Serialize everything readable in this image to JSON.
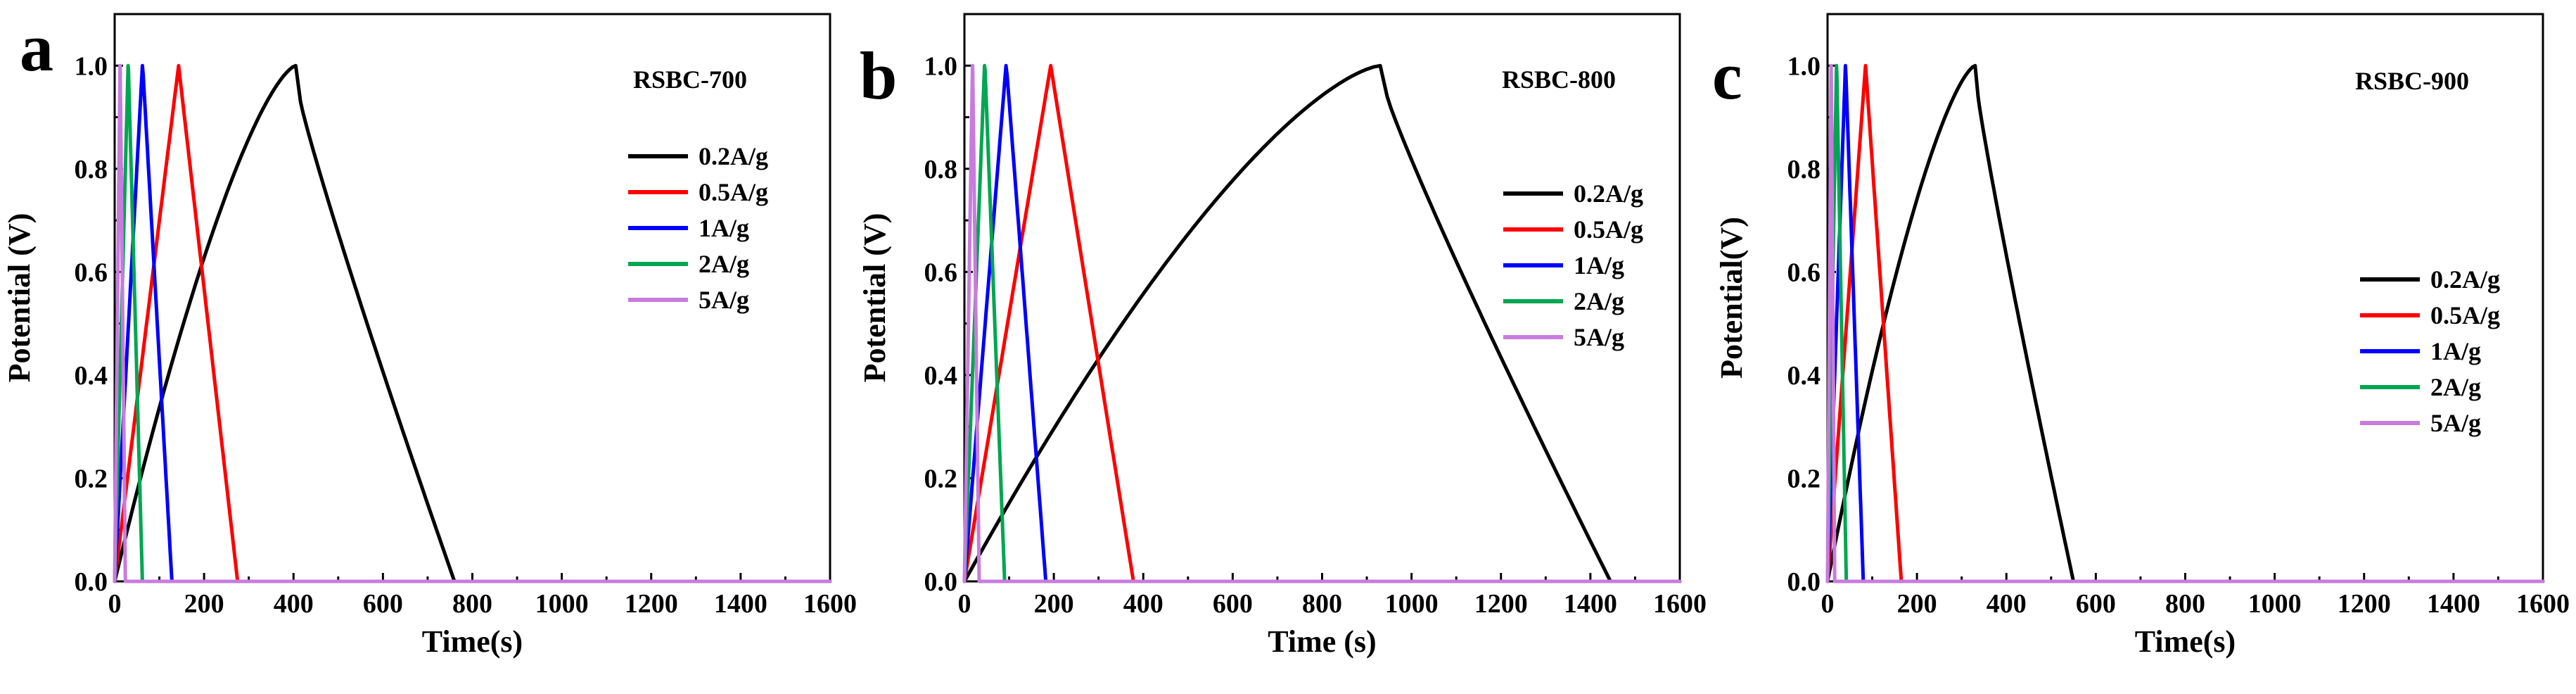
{
  "chart_data": [
    {
      "type": "line",
      "panel_label": "a",
      "sample": "RSBC-700",
      "xlabel": "Time(s)",
      "ylabel": "Potential (V)",
      "xlim": [
        0,
        1600
      ],
      "ylim": [
        0,
        1.1
      ],
      "xticks": [
        0,
        200,
        400,
        600,
        800,
        1000,
        1200,
        1400,
        1600
      ],
      "yticks": [
        0.0,
        0.2,
        0.4,
        0.6,
        0.8,
        1.0
      ],
      "xtick_labels": [
        "0",
        "200",
        "400",
        "600",
        "800",
        "1000",
        "1200",
        "1400",
        "1600"
      ],
      "ytick_labels": [
        "0.0",
        "0.2",
        "0.4",
        "0.6",
        "0.8",
        "1.0"
      ],
      "legend_position": "middle-right",
      "series": [
        {
          "name": "0.2A/g",
          "color": "#000000",
          "peak_time": 405,
          "end_time": 760,
          "charge_shape": "curved",
          "discharge_drop": 0.07
        },
        {
          "name": "0.5A/g",
          "color": "#ff0000",
          "peak_time": 143,
          "end_time": 275,
          "charge_shape": "linear",
          "discharge_drop": 0.03
        },
        {
          "name": "1A/g",
          "color": "#0000ff",
          "peak_time": 62,
          "end_time": 128,
          "charge_shape": "linear",
          "discharge_drop": 0.02
        },
        {
          "name": "2A/g",
          "color": "#00a651",
          "peak_time": 30,
          "end_time": 62,
          "charge_shape": "linear",
          "discharge_drop": 0.01
        },
        {
          "name": "5A/g",
          "color": "#c77cdd",
          "peak_time": 12,
          "end_time": 24,
          "charge_shape": "linear",
          "discharge_drop": 0.0
        }
      ]
    },
    {
      "type": "line",
      "panel_label": "b",
      "sample": "RSBC-800",
      "xlabel": "Time (s)",
      "ylabel": "Potential (V)",
      "xlim": [
        0,
        1600
      ],
      "ylim": [
        0,
        1.1
      ],
      "xticks": [
        0,
        200,
        400,
        600,
        800,
        1000,
        1200,
        1400,
        1600
      ],
      "yticks": [
        0.0,
        0.2,
        0.4,
        0.6,
        0.8,
        1.0
      ],
      "xtick_labels": [
        "0",
        "200",
        "400",
        "600",
        "800",
        "1000",
        "1200",
        "1400",
        "1600"
      ],
      "ytick_labels": [
        "0.0",
        "0.2",
        "0.4",
        "0.6",
        "0.8",
        "1.0"
      ],
      "legend_position": "middle-right",
      "series": [
        {
          "name": "0.2A/g",
          "color": "#000000",
          "peak_time": 930,
          "end_time": 1445,
          "charge_shape": "curved",
          "discharge_drop": 0.06
        },
        {
          "name": "0.5A/g",
          "color": "#ff0000",
          "peak_time": 193,
          "end_time": 378,
          "charge_shape": "linear",
          "discharge_drop": 0.03
        },
        {
          "name": "1A/g",
          "color": "#0000ff",
          "peak_time": 93,
          "end_time": 182,
          "charge_shape": "linear",
          "discharge_drop": 0.02
        },
        {
          "name": "2A/g",
          "color": "#00a651",
          "peak_time": 45,
          "end_time": 90,
          "charge_shape": "linear",
          "discharge_drop": 0.01
        },
        {
          "name": "5A/g",
          "color": "#c77cdd",
          "peak_time": 18,
          "end_time": 33,
          "charge_shape": "linear",
          "discharge_drop": 0.0
        }
      ]
    },
    {
      "type": "line",
      "panel_label": "c",
      "sample": "RSBC-900",
      "xlabel": "Time(s)",
      "ylabel": "Potential(V)",
      "xlim": [
        0,
        1600
      ],
      "ylim": [
        0,
        1.1
      ],
      "xticks": [
        0,
        200,
        400,
        600,
        800,
        1000,
        1200,
        1400,
        1600
      ],
      "yticks": [
        0.0,
        0.2,
        0.4,
        0.6,
        0.8,
        1.0
      ],
      "xtick_labels": [
        "0",
        "200",
        "400",
        "600",
        "800",
        "1000",
        "1200",
        "1400",
        "1600"
      ],
      "ytick_labels": [
        "0.0",
        "0.2",
        "0.4",
        "0.6",
        "0.8",
        "1.0"
      ],
      "legend_position": "right",
      "series": [
        {
          "name": "0.2A/g",
          "color": "#000000",
          "peak_time": 330,
          "end_time": 550,
          "charge_shape": "curved",
          "discharge_drop": 0.06
        },
        {
          "name": "0.5A/g",
          "color": "#ff0000",
          "peak_time": 85,
          "end_time": 165,
          "charge_shape": "linear",
          "discharge_drop": 0.03
        },
        {
          "name": "1A/g",
          "color": "#0000ff",
          "peak_time": 40,
          "end_time": 80,
          "charge_shape": "linear",
          "discharge_drop": 0.02
        },
        {
          "name": "2A/g",
          "color": "#00a651",
          "peak_time": 20,
          "end_time": 42,
          "charge_shape": "linear",
          "discharge_drop": 0.01
        },
        {
          "name": "5A/g",
          "color": "#c77cdd",
          "peak_time": 8,
          "end_time": 16,
          "charge_shape": "linear",
          "discharge_drop": 0.0
        }
      ]
    }
  ]
}
